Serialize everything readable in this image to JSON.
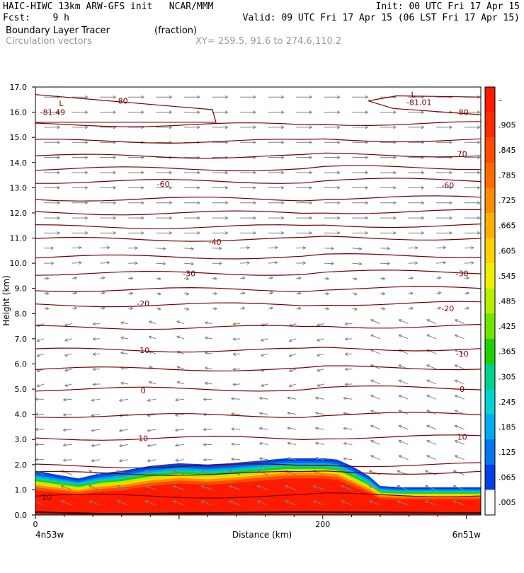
{
  "header": {
    "model_line": "HAIC-HIWC 13km ARW-GFS init   NCAR/MMM",
    "init_line": "Init: 00 UTC Fri 17 Apr 15",
    "fcst_line": "Fcst:    9 h",
    "valid_line": "Valid: 09 UTC Fri 17 Apr 15 (06 LST Fri 17 Apr 15)",
    "field_name": "Boundary Layer Tracer",
    "field_units": "(fraction)",
    "vector_label": "Circulation vectors",
    "xy_label": "XY= 259.5, 91.6 to 274.6,110.2"
  },
  "chart_data": {
    "type": "heatmap",
    "xlabel": "Distance (km)",
    "ylabel": "Height (km)",
    "xlim": [
      0,
      310
    ],
    "ylim": [
      0,
      17
    ],
    "x_ticks": [
      "0",
      "200"
    ],
    "x_end_labels": [
      "4n53w",
      "6n51w"
    ],
    "y_ticks": [
      "0.0",
      "1.0",
      "2.0",
      "3.0",
      "4.0",
      "5.0",
      "6.0",
      "7.0",
      "8.0",
      "9.0",
      "10.0",
      "11.0",
      "12.0",
      "13.0",
      "14.0",
      "15.0",
      "16.0",
      "17.0"
    ],
    "colorbar_labels": [
      "–",
      ".905",
      ".845",
      ".785",
      ".725",
      ".665",
      ".605",
      ".545",
      ".485",
      ".425",
      ".365",
      ".305",
      ".245",
      ".185",
      ".125",
      ".065",
      ".005"
    ],
    "colorbar_colors": [
      "#ff1a00",
      "#ff2a00",
      "#ff4a00",
      "#ff6a00",
      "#ff8c00",
      "#ffb000",
      "#ffd200",
      "#eef000",
      "#b4f000",
      "#6ee600",
      "#1ed200",
      "#00d28c",
      "#00d2d2",
      "#00aaf0",
      "#0078f0",
      "#0040e6",
      "#ffffff"
    ],
    "tracer_top_km": [
      [
        0,
        1.75
      ],
      [
        15,
        1.6
      ],
      [
        30,
        1.45
      ],
      [
        45,
        1.65
      ],
      [
        60,
        1.75
      ],
      [
        80,
        1.95
      ],
      [
        100,
        2.05
      ],
      [
        120,
        2.0
      ],
      [
        135,
        2.05
      ],
      [
        155,
        2.15
      ],
      [
        175,
        2.25
      ],
      [
        200,
        2.25
      ],
      [
        210,
        2.2
      ],
      [
        220,
        1.95
      ],
      [
        232,
        1.55
      ],
      [
        240,
        1.15
      ],
      [
        255,
        1.1
      ],
      [
        280,
        1.1
      ],
      [
        310,
        1.1
      ]
    ],
    "contour_labels": [
      {
        "text": "-80",
        "x": 60,
        "y": 16.45
      },
      {
        "text": "-81.49",
        "x": 12,
        "y": 16.0
      },
      {
        "text": "L",
        "x": 18,
        "y": 16.35
      },
      {
        "text": "L",
        "x": 263,
        "y": 16.7
      },
      {
        "text": "-81.01",
        "x": 267,
        "y": 16.4
      },
      {
        "text": "-80",
        "x": 297,
        "y": 16.0
      },
      {
        "text": "70",
        "x": 297,
        "y": 14.35
      },
      {
        "text": "-60",
        "x": 89,
        "y": 13.15
      },
      {
        "text": "-60",
        "x": 287,
        "y": 13.1
      },
      {
        "text": "-40",
        "x": 125,
        "y": 10.85
      },
      {
        "text": "-30",
        "x": 107,
        "y": 9.6
      },
      {
        "text": "-30",
        "x": 297,
        "y": 9.6
      },
      {
        "text": "-20",
        "x": 75,
        "y": 8.4
      },
      {
        "text": "-20",
        "x": 287,
        "y": 8.2
      },
      {
        "text": "-10",
        "x": 75,
        "y": 6.55
      },
      {
        "text": "-10",
        "x": 297,
        "y": 6.4
      },
      {
        "text": "0",
        "x": 75,
        "y": 4.95
      },
      {
        "text": "0",
        "x": 297,
        "y": 5.0
      },
      {
        "text": "10",
        "x": 75,
        "y": 3.05
      },
      {
        "text": "10",
        "x": 297,
        "y": 3.1
      },
      {
        "text": "20",
        "x": 8,
        "y": 0.7
      }
    ],
    "isotherm_heights_km": [
      0.75,
      1.65,
      1.95,
      3.05,
      3.95,
      5.0,
      5.8,
      6.55,
      7.45,
      8.35,
      8.95,
      9.6,
      10.25,
      10.95,
      11.45,
      12.0,
      12.55,
      13.25,
      13.75,
      14.25,
      14.85,
      15.5
    ],
    "grid": false,
    "legend": "colorbar-right"
  },
  "colors": {
    "contour": "#7a0000",
    "vector": "#808080",
    "frame": "#000000"
  }
}
